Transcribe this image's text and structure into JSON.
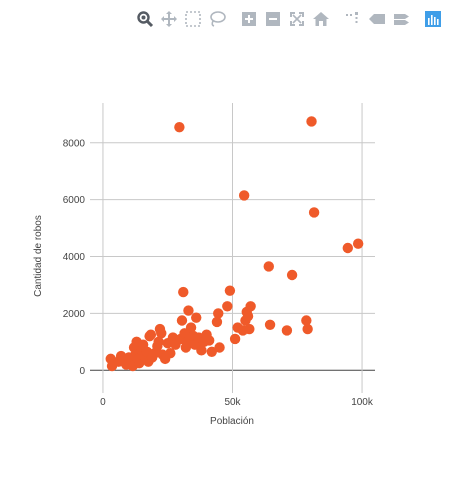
{
  "modebar": {
    "buttons": [
      {
        "name": "zoom-icon",
        "active": true
      },
      {
        "name": "pan-icon"
      },
      {
        "name": "box-select-icon"
      },
      {
        "name": "lasso-select-icon"
      },
      {
        "name": "zoom-in-icon"
      },
      {
        "name": "zoom-out-icon"
      },
      {
        "name": "autoscale-icon"
      },
      {
        "name": "reset-axes-icon"
      },
      {
        "name": "spike-lines-icon"
      },
      {
        "name": "hover-closest-icon"
      },
      {
        "name": "hover-compare-icon"
      },
      {
        "name": "plotly-logo-icon"
      }
    ],
    "icon_color": "#b0b7bf",
    "active_color": "#555b63",
    "logo_color": "#3f9ee8"
  },
  "chart_data": {
    "type": "scatter",
    "xlabel": "Población",
    "ylabel": "Cantidad de robos",
    "xlim": [
      -5000,
      105000
    ],
    "ylim": [
      -800,
      9400
    ],
    "x_ticks": [
      0,
      50000,
      100000
    ],
    "x_tick_labels": [
      "0",
      "50k",
      "100k"
    ],
    "y_ticks": [
      0,
      2000,
      4000,
      6000,
      8000
    ],
    "y_tick_labels": [
      "0",
      "2000",
      "4000",
      "6000",
      "8000"
    ],
    "grid": true,
    "marker_color": "#ef5a2a",
    "points": [
      [
        3000,
        400
      ],
      [
        3500,
        150
      ],
      [
        6000,
        300
      ],
      [
        7000,
        500
      ],
      [
        8000,
        350
      ],
      [
        9000,
        200
      ],
      [
        10000,
        450
      ],
      [
        11000,
        300
      ],
      [
        11500,
        150
      ],
      [
        12000,
        800
      ],
      [
        12500,
        550
      ],
      [
        13000,
        1000
      ],
      [
        13500,
        400
      ],
      [
        14000,
        250
      ],
      [
        15000,
        700
      ],
      [
        15500,
        900
      ],
      [
        16000,
        500
      ],
      [
        17000,
        650
      ],
      [
        17500,
        300
      ],
      [
        18000,
        1200
      ],
      [
        18500,
        1250
      ],
      [
        19000,
        450
      ],
      [
        20000,
        600
      ],
      [
        21000,
        850
      ],
      [
        21500,
        1000
      ],
      [
        22000,
        1450
      ],
      [
        22500,
        1300
      ],
      [
        23000,
        550
      ],
      [
        24000,
        400
      ],
      [
        25000,
        950
      ],
      [
        26000,
        600
      ],
      [
        27000,
        1150
      ],
      [
        28000,
        900
      ],
      [
        29500,
        8550
      ],
      [
        30000,
        1100
      ],
      [
        30500,
        1750
      ],
      [
        31000,
        2750
      ],
      [
        31500,
        1300
      ],
      [
        32000,
        800
      ],
      [
        32500,
        1000
      ],
      [
        33000,
        2100
      ],
      [
        33500,
        1150
      ],
      [
        34000,
        1500
      ],
      [
        35000,
        1200
      ],
      [
        35500,
        900
      ],
      [
        36000,
        1850
      ],
      [
        36500,
        950
      ],
      [
        37000,
        1150
      ],
      [
        38000,
        700
      ],
      [
        39000,
        1000
      ],
      [
        40000,
        1250
      ],
      [
        41000,
        1050
      ],
      [
        42000,
        650
      ],
      [
        44000,
        1700
      ],
      [
        44500,
        2000
      ],
      [
        45000,
        800
      ],
      [
        48000,
        2250
      ],
      [
        49000,
        2800
      ],
      [
        51000,
        1100
      ],
      [
        52000,
        1500
      ],
      [
        54000,
        1400
      ],
      [
        54500,
        6150
      ],
      [
        55000,
        1750
      ],
      [
        55500,
        2050
      ],
      [
        56000,
        1900
      ],
      [
        56500,
        1450
      ],
      [
        57000,
        2250
      ],
      [
        64000,
        3650
      ],
      [
        64500,
        1600
      ],
      [
        71000,
        1400
      ],
      [
        73000,
        3350
      ],
      [
        78500,
        1750
      ],
      [
        79000,
        1450
      ],
      [
        80500,
        8750
      ],
      [
        81500,
        5550
      ],
      [
        94500,
        4300
      ],
      [
        98500,
        4450
      ]
    ]
  }
}
